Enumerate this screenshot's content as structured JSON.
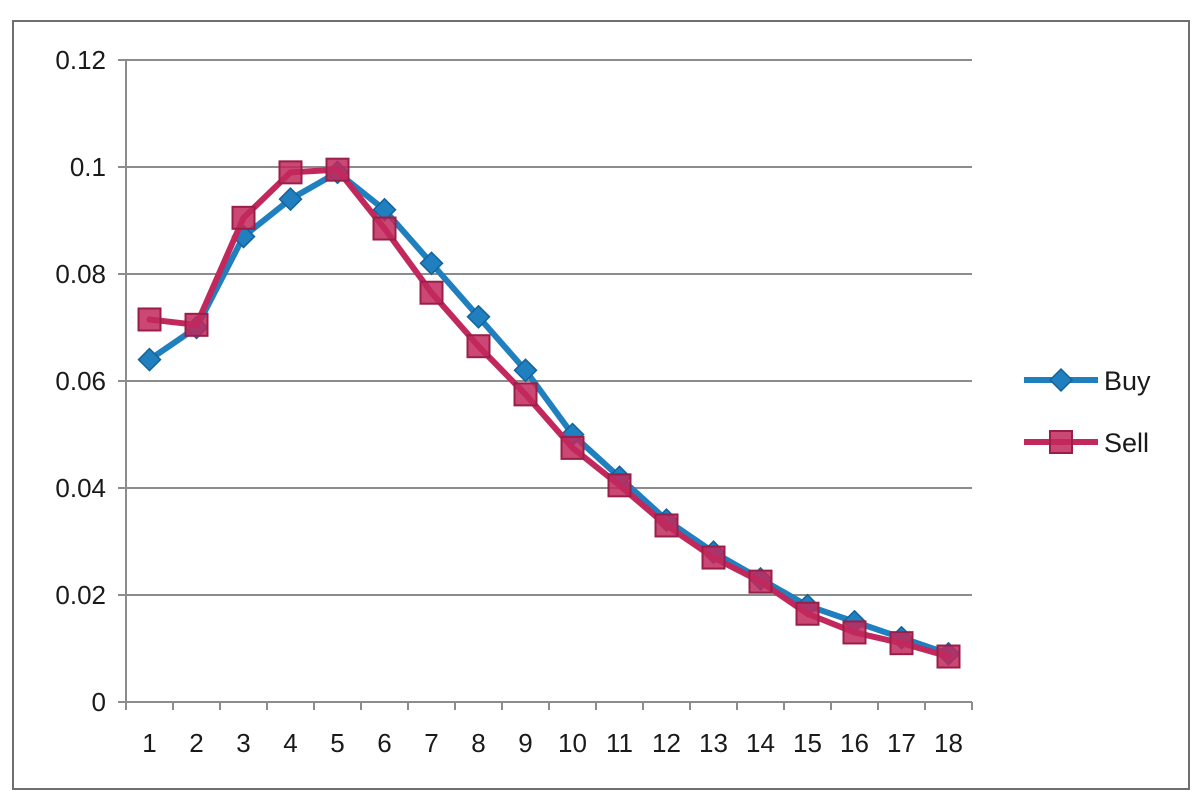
{
  "chart_data": {
    "type": "line",
    "title": "",
    "xlabel": "",
    "ylabel": "",
    "categories": [
      "1",
      "2",
      "3",
      "4",
      "5",
      "6",
      "7",
      "8",
      "9",
      "10",
      "11",
      "12",
      "13",
      "14",
      "15",
      "16",
      "17",
      "18"
    ],
    "ylim": [
      0,
      0.12
    ],
    "yticks": [
      "0",
      "0.02",
      "0.04",
      "0.06",
      "0.08",
      "0.1",
      "0.12"
    ],
    "ytick_values": [
      0,
      0.02,
      0.04,
      0.06,
      0.08,
      0.1,
      0.12
    ],
    "grid": true,
    "legend_position": "right",
    "series": [
      {
        "name": "Buy",
        "color": "#1f7fbf",
        "marker": "diamond",
        "values": [
          0.064,
          0.07,
          0.087,
          0.094,
          0.099,
          0.092,
          0.082,
          0.072,
          0.062,
          0.05,
          0.042,
          0.034,
          0.028,
          0.023,
          0.018,
          0.015,
          0.012,
          0.009
        ]
      },
      {
        "name": "Sell",
        "color": "#c2285c",
        "marker": "square",
        "values": [
          0.0715,
          0.0705,
          0.0905,
          0.099,
          0.0995,
          0.0885,
          0.0765,
          0.0665,
          0.0575,
          0.0475,
          0.0405,
          0.033,
          0.027,
          0.0225,
          0.0165,
          0.013,
          0.011,
          0.0085
        ]
      }
    ]
  }
}
